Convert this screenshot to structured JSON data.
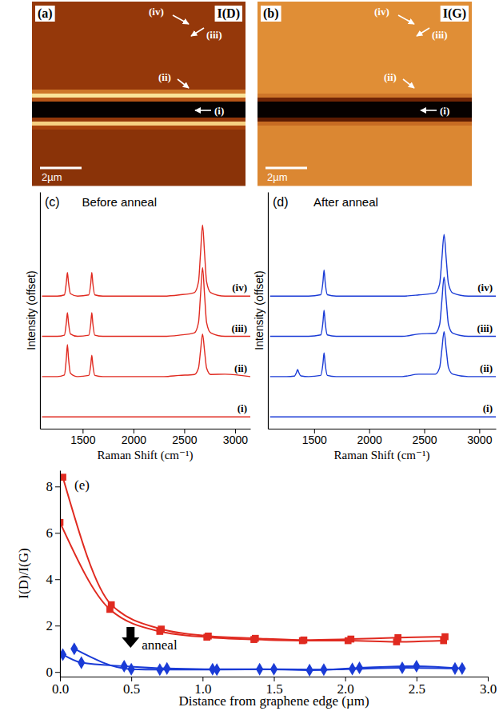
{
  "chart_data": [
    {
      "type": "heatmap",
      "panel_label": "(a)",
      "title": "I(D)",
      "annotations": [
        "(iv)",
        "(iii)",
        "(ii)",
        "(i)"
      ],
      "scale_bar": "2µm",
      "zlim": [
        0,
        1
      ],
      "intensity_rows": [
        0.45,
        0.45,
        0.45,
        0.45,
        0.45,
        0.45,
        0.45,
        0.45,
        0.45,
        0.45,
        0.45,
        0.45,
        0.45,
        0.45,
        0.45,
        0.45,
        0.45,
        0.45,
        0.45,
        0.45,
        0.45,
        0.45,
        0.65,
        0.95,
        0.55,
        0.02,
        0.02,
        0.02,
        0.02,
        0.45,
        0.9,
        0.5,
        0.42,
        0.42,
        0.42,
        0.42,
        0.42,
        0.42,
        0.42,
        0.42,
        0.42,
        0.42,
        0.42,
        0.42,
        0.42,
        0.42
      ]
    },
    {
      "type": "heatmap",
      "panel_label": "(b)",
      "title": "I(G)",
      "annotations": [
        "(iv)",
        "(iii)",
        "(ii)",
        "(i)"
      ],
      "scale_bar": "2µm",
      "zlim": [
        0,
        1
      ],
      "intensity_rows": [
        0.72,
        0.72,
        0.72,
        0.72,
        0.72,
        0.72,
        0.72,
        0.72,
        0.72,
        0.72,
        0.72,
        0.72,
        0.72,
        0.72,
        0.72,
        0.72,
        0.72,
        0.72,
        0.72,
        0.72,
        0.72,
        0.72,
        0.72,
        0.65,
        0.35,
        0.02,
        0.02,
        0.02,
        0.02,
        0.3,
        0.62,
        0.7,
        0.7,
        0.7,
        0.7,
        0.7,
        0.7,
        0.7,
        0.7,
        0.7,
        0.7,
        0.7,
        0.7,
        0.7,
        0.7,
        0.7
      ]
    },
    {
      "type": "line",
      "panel_label": "(c)",
      "title": "Before anneal",
      "x_label": "Raman Shift (cm⁻¹)",
      "y_label": "Intensity (offset)",
      "xlim": [
        1080,
        3150
      ],
      "xticks": [
        1500,
        2000,
        2500,
        3000
      ],
      "ylim": [
        0,
        10
      ],
      "tick_labels": "x",
      "x": [
        1100,
        1250,
        1320,
        1340,
        1350,
        1360,
        1380,
        1450,
        1560,
        1580,
        1590,
        1600,
        1620,
        1700,
        2000,
        2300,
        2450,
        2600,
        2640,
        2660,
        2680,
        2700,
        2720,
        2760,
        2900,
        3150
      ],
      "series": [
        {
          "name": "(iv)",
          "color": "#e02a20",
          "values": [
            5.6,
            5.6,
            5.65,
            6.2,
            6.6,
            6.2,
            5.7,
            5.6,
            5.65,
            6.15,
            6.6,
            6.15,
            5.65,
            5.6,
            5.6,
            5.6,
            5.65,
            5.75,
            6.2,
            7.4,
            8.6,
            7.4,
            6.2,
            5.75,
            5.6,
            5.6
          ]
        },
        {
          "name": "(iii)",
          "color": "#e02a20",
          "values": [
            3.9,
            3.9,
            3.95,
            4.5,
            4.9,
            4.5,
            4.0,
            3.9,
            3.95,
            4.45,
            4.9,
            4.45,
            3.95,
            3.9,
            3.9,
            3.9,
            3.95,
            4.05,
            4.48,
            5.64,
            6.8,
            5.64,
            4.48,
            4.05,
            3.9,
            3.9
          ]
        },
        {
          "name": "(ii)",
          "color": "#e02a20",
          "values": [
            2.2,
            2.2,
            2.27,
            3.01,
            3.55,
            3.01,
            2.34,
            2.2,
            2.25,
            2.7,
            3.1,
            2.7,
            2.25,
            2.2,
            2.2,
            2.2,
            2.25,
            2.29,
            2.56,
            3.28,
            4.0,
            3.28,
            2.56,
            2.29,
            2.3,
            2.2
          ]
        },
        {
          "name": "(i)",
          "color": "#e02a20",
          "values": [
            0.5,
            0.5,
            0.5,
            0.5,
            0.5,
            0.5,
            0.5,
            0.5,
            0.5,
            0.5,
            0.5,
            0.5,
            0.5,
            0.5,
            0.5,
            0.5,
            0.5,
            0.5,
            0.5,
            0.5,
            0.5,
            0.5,
            0.5,
            0.5,
            0.5,
            0.5
          ]
        }
      ]
    },
    {
      "type": "line",
      "panel_label": "(d)",
      "title": "After anneal",
      "x_label": "Raman Shift (cm⁻¹)",
      "y_label": "Intensity (offset)",
      "xlim": [
        1080,
        3150
      ],
      "xticks": [
        1500,
        2000,
        2500,
        3000
      ],
      "ylim": [
        0,
        10
      ],
      "tick_labels": "x",
      "x": [
        1100,
        1250,
        1320,
        1340,
        1350,
        1360,
        1380,
        1450,
        1560,
        1580,
        1590,
        1600,
        1620,
        1700,
        2000,
        2300,
        2450,
        2600,
        2640,
        2660,
        2680,
        2700,
        2720,
        2760,
        2900,
        3150
      ],
      "series": [
        {
          "name": "(iv)",
          "color": "#1a3bd6",
          "values": [
            5.6,
            5.6,
            5.6,
            5.6,
            5.6,
            5.6,
            5.6,
            5.6,
            5.66,
            6.2,
            6.7,
            6.2,
            5.66,
            5.6,
            5.6,
            5.6,
            5.65,
            5.73,
            6.12,
            7.16,
            8.2,
            7.16,
            6.12,
            5.73,
            5.6,
            5.6
          ]
        },
        {
          "name": "(iii)",
          "color": "#1a3bd6",
          "values": [
            3.9,
            3.9,
            3.9,
            3.9,
            3.9,
            3.9,
            3.9,
            3.9,
            3.96,
            4.5,
            5.0,
            4.5,
            3.96,
            3.9,
            3.9,
            3.9,
            4.0,
            4.03,
            4.4,
            5.4,
            6.4,
            5.4,
            4.4,
            4.03,
            3.9,
            3.9
          ]
        },
        {
          "name": "(ii)",
          "color": "#1a3bd6",
          "values": [
            2.2,
            2.2,
            2.22,
            2.38,
            2.5,
            2.38,
            2.23,
            2.2,
            2.25,
            2.75,
            3.2,
            2.75,
            2.25,
            2.2,
            2.2,
            2.2,
            2.3,
            2.3,
            2.58,
            3.34,
            4.1,
            3.34,
            2.58,
            2.3,
            2.2,
            2.2
          ]
        },
        {
          "name": "(i)",
          "color": "#1a3bd6",
          "values": [
            0.5,
            0.5,
            0.5,
            0.5,
            0.5,
            0.5,
            0.5,
            0.5,
            0.5,
            0.5,
            0.5,
            0.5,
            0.5,
            0.5,
            0.5,
            0.5,
            0.5,
            0.5,
            0.5,
            0.5,
            0.5,
            0.5,
            0.5,
            0.5,
            0.5,
            0.5
          ]
        }
      ]
    },
    {
      "type": "line",
      "panel_label": "(e)",
      "annotations": [
        "anneal"
      ],
      "x_label": "Distance from graphene edge (µm)",
      "y_label": "I(D)/I(G)",
      "xlim": [
        0,
        3
      ],
      "xticks": [
        {
          "value": 0,
          "label": "0.0"
        },
        0.5,
        {
          "value": 1,
          "label": "1.0"
        },
        1.5,
        {
          "value": 2,
          "label": "2.0"
        },
        2.5,
        {
          "value": 3,
          "label": "3.0"
        }
      ],
      "ylim": [
        -0.2,
        8.7
      ],
      "yticks": [
        0,
        2,
        4,
        6,
        8
      ],
      "series": [
        {
          "color": "#e02a20",
          "marker": "square",
          "x": [
            0.02,
            0.36,
            0.71,
            1.04,
            1.37,
            1.71,
            2.04,
            2.37,
            2.7
          ],
          "values": [
            8.4,
            2.9,
            1.85,
            1.55,
            1.45,
            1.38,
            1.42,
            1.48,
            1.52
          ]
        },
        {
          "color": "#e02a20",
          "marker": "square",
          "x": [
            0.0,
            0.35,
            0.7,
            1.03,
            1.36,
            1.7,
            2.02,
            2.36,
            2.69
          ],
          "values": [
            6.45,
            2.7,
            1.75,
            1.5,
            1.4,
            1.35,
            1.35,
            1.3,
            1.35
          ]
        },
        {
          "color": "#1a3bd6",
          "marker": "diamond",
          "x": [
            0.02,
            0.15,
            0.45,
            0.75,
            1.07,
            1.4,
            1.75,
            2.05,
            2.4,
            2.77
          ],
          "values": [
            0.75,
            0.4,
            0.25,
            0.15,
            0.12,
            0.12,
            0.08,
            0.13,
            0.18,
            0.15
          ]
        },
        {
          "color": "#1a3bd6",
          "marker": "diamond",
          "x": [
            0.1,
            0.5,
            0.7,
            1.1,
            1.5,
            1.85,
            2.1,
            2.5,
            2.82
          ],
          "values": [
            1.0,
            0.12,
            0.1,
            0.1,
            0.12,
            0.1,
            0.18,
            0.25,
            0.15
          ]
        }
      ]
    }
  ]
}
